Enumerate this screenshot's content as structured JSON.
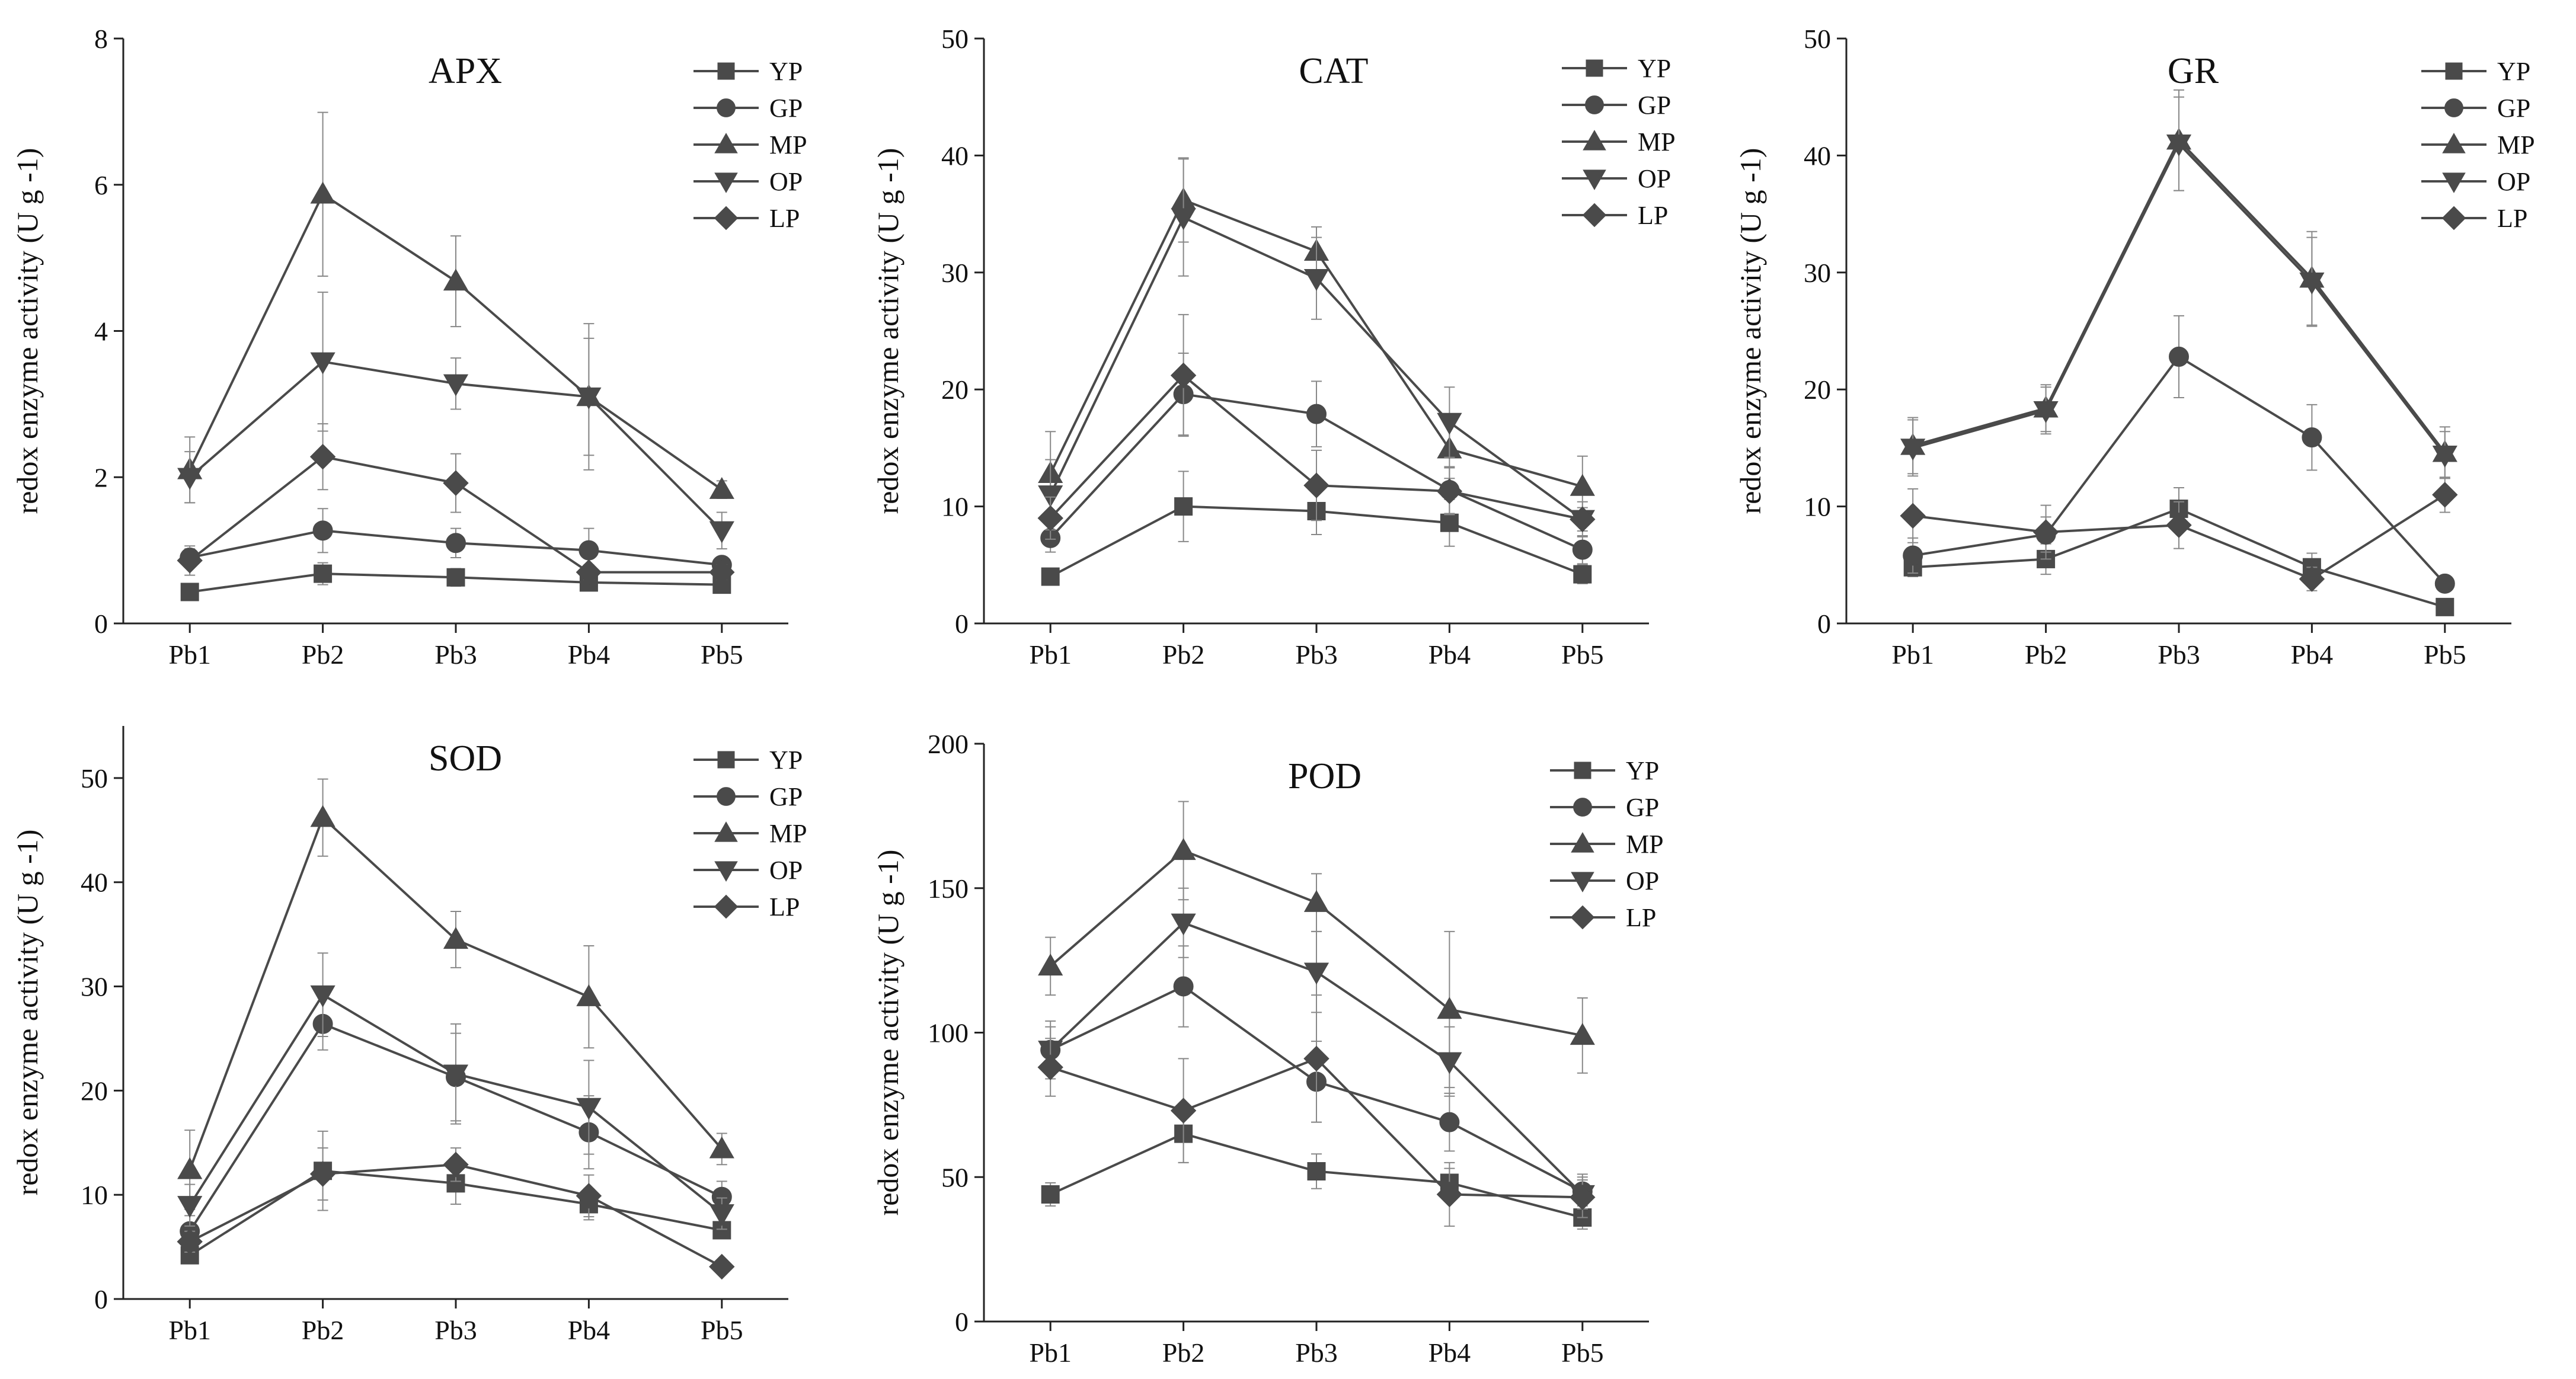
{
  "chart_data": [
    {
      "type": "line",
      "title": "APX",
      "xlabel": "",
      "ylabel": "redox enzyme activity (U g -1)",
      "categories": [
        "Pb1",
        "Pb2",
        "Pb3",
        "Pb4",
        "Pb5"
      ],
      "ylim": [
        0,
        8
      ],
      "yticks": [
        0,
        2,
        4,
        6,
        8
      ],
      "series": [
        {
          "name": "YP",
          "marker": "square",
          "values": [
            0.43,
            0.68,
            0.63,
            0.56,
            0.53
          ],
          "errors": [
            0.06,
            0.15,
            0.12,
            0.08,
            0.06
          ]
        },
        {
          "name": "GP",
          "marker": "circle",
          "values": [
            0.9,
            1.27,
            1.1,
            1.0,
            0.8
          ],
          "errors": [
            0.12,
            0.3,
            0.2,
            0.3,
            0.1
          ]
        },
        {
          "name": "MP",
          "marker": "triangle-up",
          "values": [
            2.1,
            5.87,
            4.68,
            3.1,
            1.83
          ],
          "errors": [
            0.45,
            1.12,
            0.62,
            1.0,
            0.12
          ]
        },
        {
          "name": "OP",
          "marker": "triangle-down",
          "values": [
            2.0,
            3.58,
            3.28,
            3.1,
            1.27
          ],
          "errors": [
            0.35,
            0.95,
            0.35,
            0.8,
            0.25
          ]
        },
        {
          "name": "LP",
          "marker": "diamond",
          "values": [
            0.86,
            2.28,
            1.92,
            0.7,
            0.7
          ],
          "errors": [
            0.2,
            0.45,
            0.4,
            0.1,
            0.1
          ]
        }
      ]
    },
    {
      "type": "line",
      "title": "CAT",
      "xlabel": "",
      "ylabel": "redox enzyme activity (U g -1)",
      "categories": [
        "Pb1",
        "Pb2",
        "Pb3",
        "Pb4",
        "Pb5"
      ],
      "ylim": [
        0,
        50
      ],
      "yticks": [
        0,
        10,
        20,
        30,
        40,
        50
      ],
      "series": [
        {
          "name": "YP",
          "marker": "square",
          "values": [
            4.0,
            10.0,
            9.6,
            8.6,
            4.2
          ],
          "errors": [
            0.5,
            3.0,
            2.0,
            2.0,
            0.8
          ]
        },
        {
          "name": "GP",
          "marker": "circle",
          "values": [
            7.3,
            19.6,
            17.9,
            11.4,
            6.3
          ],
          "errors": [
            1.2,
            3.5,
            2.8,
            2.0,
            1.2
          ]
        },
        {
          "name": "MP",
          "marker": "triangle-up",
          "values": [
            12.8,
            36.2,
            31.8,
            14.9,
            11.7
          ],
          "errors": [
            3.6,
            3.6,
            2.1,
            2.5,
            2.6
          ]
        },
        {
          "name": "OP",
          "marker": "triangle-down",
          "values": [
            11.0,
            34.7,
            29.5,
            17.2,
            8.9
          ],
          "errors": [
            3.0,
            5.0,
            3.5,
            3.0,
            1.5
          ]
        },
        {
          "name": "LP",
          "marker": "diamond",
          "values": [
            9.0,
            21.2,
            11.8,
            11.3,
            8.9
          ],
          "errors": [
            1.8,
            5.2,
            3.0,
            2.0,
            1.0
          ]
        }
      ]
    },
    {
      "type": "line",
      "title": "GR",
      "xlabel": "",
      "ylabel": "redox enzyme activity (U g -1)",
      "categories": [
        "Pb1",
        "Pb2",
        "Pb3",
        "Pb4",
        "Pb5"
      ],
      "ylim": [
        0,
        50
      ],
      "yticks": [
        0,
        10,
        20,
        30,
        40,
        50
      ],
      "series": [
        {
          "name": "YP",
          "marker": "square",
          "values": [
            4.8,
            5.5,
            9.8,
            4.8,
            1.4
          ],
          "errors": [
            0.8,
            1.3,
            1.8,
            1.2,
            0.3
          ]
        },
        {
          "name": "GP",
          "marker": "circle",
          "values": [
            5.8,
            7.6,
            22.8,
            15.9,
            3.4
          ],
          "errors": [
            1.5,
            1.5,
            3.5,
            2.8,
            0.6
          ]
        },
        {
          "name": "MP",
          "marker": "triangle-up",
          "values": [
            15.2,
            18.4,
            41.3,
            29.5,
            14.6
          ],
          "errors": [
            2.4,
            2.0,
            4.3,
            4.0,
            2.2
          ]
        },
        {
          "name": "OP",
          "marker": "triangle-down",
          "values": [
            15.0,
            18.2,
            41.0,
            29.2,
            14.4
          ],
          "errors": [
            2.4,
            2.0,
            4.0,
            3.8,
            2.0
          ]
        },
        {
          "name": "LP",
          "marker": "diamond",
          "values": [
            9.2,
            7.8,
            8.4,
            3.8,
            11.0
          ],
          "errors": [
            2.3,
            2.3,
            2.0,
            1.0,
            1.5
          ]
        }
      ]
    },
    {
      "type": "line",
      "title": "SOD",
      "xlabel": "",
      "ylabel": "redox enzyme activity (U g -1)",
      "categories": [
        "Pb1",
        "Pb2",
        "Pb3",
        "Pb4",
        "Pb5"
      ],
      "ylim": [
        0,
        55
      ],
      "yticks": [
        0,
        10,
        20,
        30,
        40,
        50
      ],
      "series": [
        {
          "name": "YP",
          "marker": "square",
          "values": [
            4.2,
            12.3,
            11.1,
            9.1,
            6.6
          ],
          "errors": [
            0.8,
            3.8,
            2.0,
            1.5,
            0.8
          ]
        },
        {
          "name": "GP",
          "marker": "circle",
          "values": [
            6.5,
            26.4,
            21.3,
            16.0,
            9.8
          ],
          "errors": [
            1.5,
            2.5,
            4.2,
            3.5,
            1.5
          ]
        },
        {
          "name": "MP",
          "marker": "triangle-up",
          "values": [
            12.4,
            46.2,
            34.5,
            29.0,
            14.4
          ],
          "errors": [
            3.8,
            3.7,
            2.7,
            4.9,
            1.5
          ]
        },
        {
          "name": "OP",
          "marker": "triangle-down",
          "values": [
            9.0,
            29.2,
            21.6,
            18.4,
            8.2
          ],
          "errors": [
            2.0,
            4.0,
            4.8,
            4.5,
            1.5
          ]
        },
        {
          "name": "LP",
          "marker": "diamond",
          "values": [
            5.5,
            12.0,
            12.9,
            9.9,
            3.1
          ],
          "errors": [
            1.0,
            2.5,
            1.6,
            2.0,
            0.5
          ]
        }
      ]
    },
    {
      "type": "line",
      "title": "POD",
      "xlabel": "",
      "ylabel": "redox enzyme activity (U g -1)",
      "categories": [
        "Pb1",
        "Pb2",
        "Pb3",
        "Pb4",
        "Pb5"
      ],
      "ylim": [
        0,
        200
      ],
      "yticks": [
        0,
        50,
        100,
        150,
        200
      ],
      "series": [
        {
          "name": "YP",
          "marker": "square",
          "values": [
            44,
            65,
            52,
            48,
            36
          ],
          "errors": [
            4,
            10,
            6,
            5,
            4
          ]
        },
        {
          "name": "GP",
          "marker": "circle",
          "values": [
            94,
            116,
            83,
            69,
            45
          ],
          "errors": [
            10,
            14,
            14,
            10,
            6
          ]
        },
        {
          "name": "MP",
          "marker": "triangle-up",
          "values": [
            123,
            163,
            145,
            108,
            99
          ],
          "errors": [
            10,
            17,
            10,
            27,
            13
          ]
        },
        {
          "name": "OP",
          "marker": "triangle-down",
          "values": [
            94,
            138,
            121,
            90,
            44
          ],
          "errors": [
            8,
            12,
            14,
            12,
            5
          ]
        },
        {
          "name": "LP",
          "marker": "diamond",
          "values": [
            88,
            73,
            91,
            44,
            43
          ],
          "errors": [
            10,
            18,
            22,
            11,
            7
          ]
        }
      ]
    }
  ]
}
